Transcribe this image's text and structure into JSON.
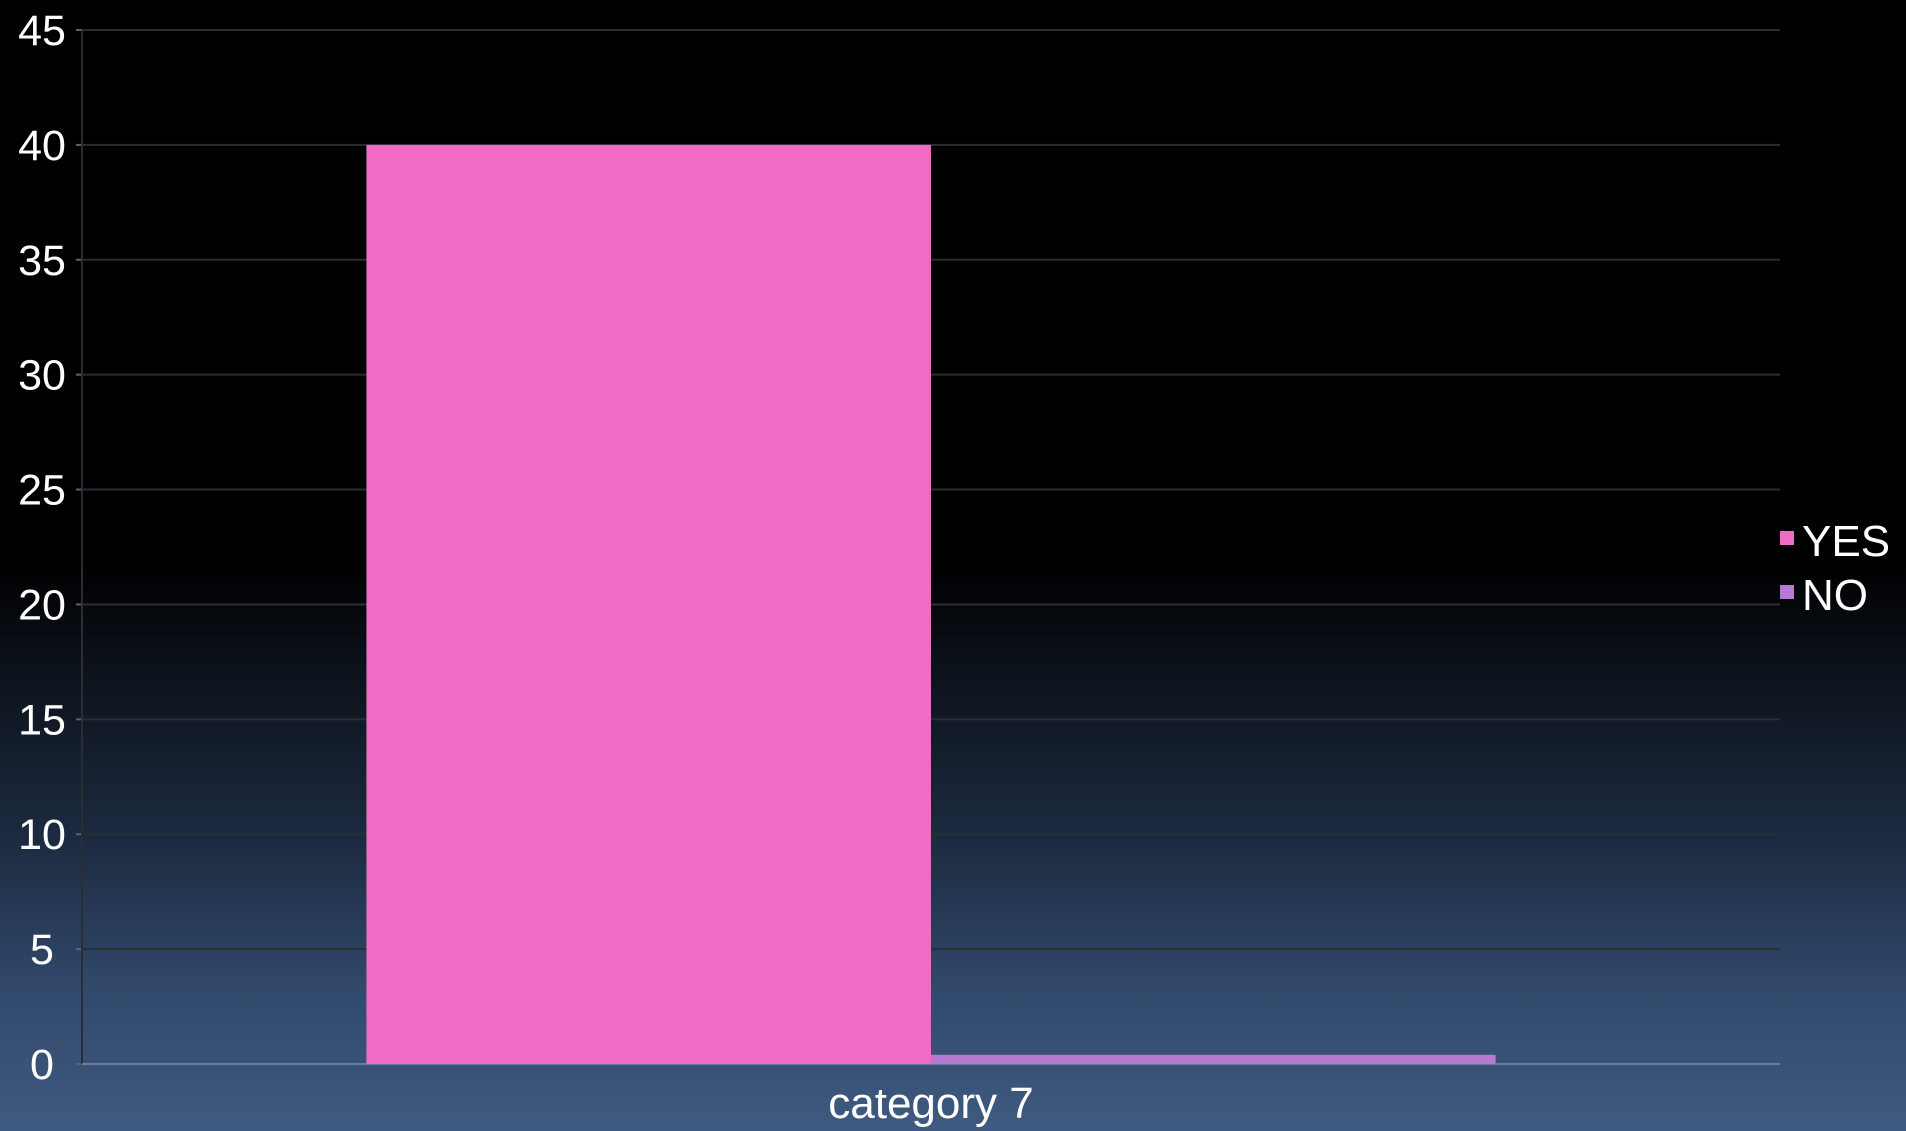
{
  "chart_data": {
    "type": "bar",
    "categories": [
      "category 7"
    ],
    "series": [
      {
        "name": "YES",
        "values": [
          40
        ],
        "color": "#f06cc4"
      },
      {
        "name": "NO",
        "values": [
          0.4
        ],
        "color": "#b77ad0"
      }
    ],
    "ylim": [
      0,
      45
    ],
    "yticks": [
      "0",
      "5",
      "10",
      "15",
      "20",
      "25",
      "30",
      "35",
      "40",
      "45"
    ],
    "grid": true,
    "legend_position": "right"
  }
}
